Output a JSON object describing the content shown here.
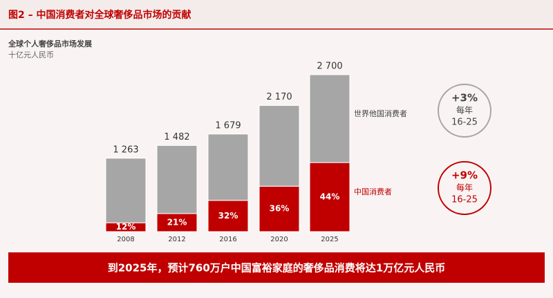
{
  "chart_data": {
    "type": "bar",
    "title": "图2 – 中国消费者对全球奢侈品市场的贡献",
    "subtitle": "全球个人奢侈品市场发展",
    "unit": "十亿元人民币",
    "stacked": true,
    "categories": [
      "2008",
      "2012",
      "2016",
      "2020",
      "2025"
    ],
    "totals": [
      1263,
      1482,
      1679,
      2170,
      2700
    ],
    "total_labels": [
      "1 263",
      "1 482",
      "1 679",
      "2 170",
      "2 700"
    ],
    "series": [
      {
        "name": "中国消费者",
        "color": "#c00000",
        "values": [
          152,
          311,
          537,
          781,
          1188
        ],
        "shares": [
          12,
          21,
          32,
          36,
          44
        ],
        "share_labels": [
          "12%",
          "21%",
          "32%",
          "36%",
          "44%"
        ],
        "growth": "+9%",
        "growth_unit": "每年",
        "growth_period": "16-25"
      },
      {
        "name": "世界他国消费者",
        "color": "#a6a6a6",
        "values": [
          1111,
          1171,
          1142,
          1389,
          1512
        ],
        "growth": "+3%",
        "growth_unit": "每年",
        "growth_period": "16-25"
      }
    ],
    "footer": "到2025年，预计760万户中国富裕家庭的奢侈品消费将达1万亿元人民币"
  }
}
